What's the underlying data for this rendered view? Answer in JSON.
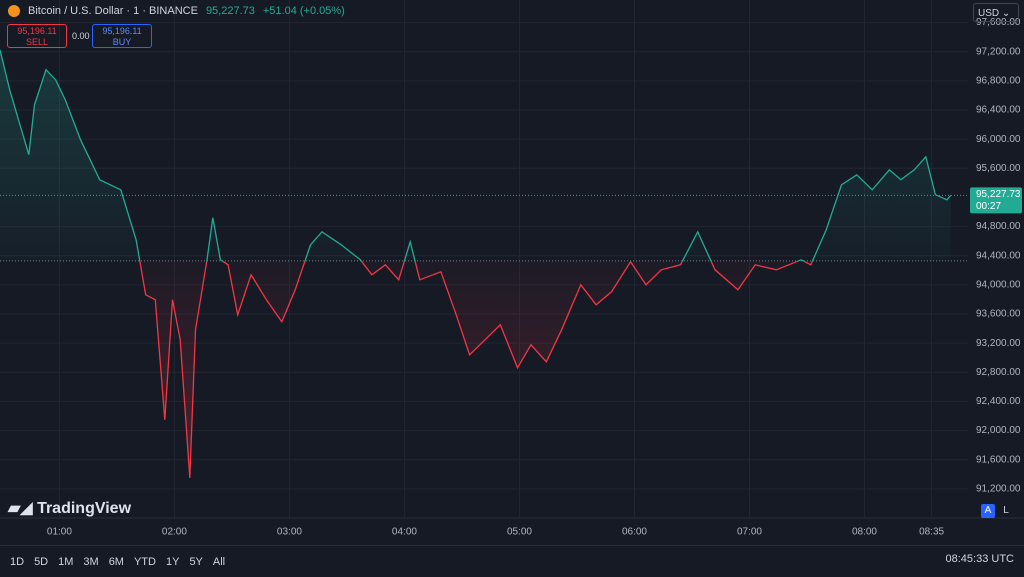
{
  "header": {
    "symbol": "Bitcoin / U.S. Dollar · 1 · BINANCE",
    "price": "95,227.73",
    "change": "+51.04 (+0.05%)",
    "sell_price": "95,196.11",
    "sell": "SELL",
    "spread": "0.00",
    "buy_price": "95,196.11",
    "buy": "BUY",
    "currency": "USD"
  },
  "logo": "TradingView",
  "scale_buttons": [
    "A",
    "L"
  ],
  "timeframes": [
    "1D",
    "5D",
    "1M",
    "3M",
    "6M",
    "YTD",
    "1Y",
    "5Y",
    "All"
  ],
  "clock": "08:45:33 UTC",
  "chart_data": {
    "type": "baseline",
    "x": [
      "00:29",
      "00:34",
      "00:44",
      "00:47",
      "00:53",
      "00:58",
      "01:03",
      "01:11",
      "01:21",
      "01:32",
      "01:40",
      "01:45",
      "01:50",
      "01:55",
      "01:59",
      "02:03",
      "02:08",
      "02:11",
      "02:17",
      "02:20",
      "02:24",
      "02:28",
      "02:33",
      "02:40",
      "02:48",
      "02:56",
      "03:03",
      "03:11",
      "03:17",
      "03:27",
      "03:37",
      "03:43",
      "03:50",
      "03:57",
      "04:03",
      "04:08",
      "04:19",
      "04:27",
      "04:34",
      "04:42",
      "04:50",
      "04:59",
      "05:06",
      "05:14",
      "05:22",
      "05:32",
      "05:40",
      "05:48",
      "05:58",
      "06:06",
      "06:14",
      "06:24",
      "06:33",
      "06:42",
      "06:54",
      "07:03",
      "07:14",
      "07:27",
      "07:32",
      "07:40",
      "07:48",
      "07:56",
      "08:04",
      "08:13",
      "08:19",
      "08:26",
      "08:32",
      "08:37",
      "08:43",
      "08:45"
    ],
    "values": [
      97227,
      96680,
      95786,
      96472,
      96953,
      96816,
      96541,
      95992,
      95443,
      95305,
      94619,
      93863,
      93795,
      92148,
      93795,
      93246,
      91351,
      93383,
      94344,
      94921,
      94344,
      94275,
      93589,
      94138,
      93795,
      93493,
      93932,
      94550,
      94729,
      94550,
      94344,
      94138,
      94275,
      94069,
      94591,
      94069,
      94179,
      93589,
      93040,
      93246,
      93452,
      92861,
      93177,
      92944,
      93383,
      94001,
      93726,
      93905,
      94316,
      94001,
      94207,
      94275,
      94729,
      94207,
      93932,
      94275,
      94207,
      94344,
      94275,
      94756,
      95374,
      95511,
      95305,
      95580,
      95443,
      95580,
      95758,
      95237,
      95168,
      95228
    ],
    "baseline": 94330,
    "above_color": "#22ab94",
    "below_color": "#f23645",
    "last_price": 95227.73,
    "last_price_label": "95,227.73",
    "countdown": "00:27",
    "xlim": [
      "00:29",
      "08:54"
    ],
    "xticks": [
      "01:00",
      "02:00",
      "03:00",
      "04:00",
      "05:00",
      "06:00",
      "07:00",
      "08:00",
      "08:35"
    ],
    "ylim": [
      90800,
      97910
    ],
    "yticks": [
      {
        "value": 91200,
        "label": "91,200.00"
      },
      {
        "value": 91600,
        "label": "91,600.00"
      },
      {
        "value": 92000,
        "label": "92,000.00"
      },
      {
        "value": 92400,
        "label": "92,400.00"
      },
      {
        "value": 92800,
        "label": "92,800.00"
      },
      {
        "value": 93200,
        "label": "93,200.00"
      },
      {
        "value": 93600,
        "label": "93,600.00"
      },
      {
        "value": 94000,
        "label": "94,000.00"
      },
      {
        "value": 94400,
        "label": "94,400.00"
      },
      {
        "value": 94800,
        "label": "94,800.00"
      },
      {
        "value": 95600,
        "label": "95,600.00"
      },
      {
        "value": 96000,
        "label": "96,000.00"
      },
      {
        "value": 96400,
        "label": "96,400.00"
      },
      {
        "value": 96800,
        "label": "96,800.00"
      },
      {
        "value": 97200,
        "label": "97,200.00"
      },
      {
        "value": 97600,
        "label": "97,600.00"
      }
    ],
    "grid": true
  }
}
